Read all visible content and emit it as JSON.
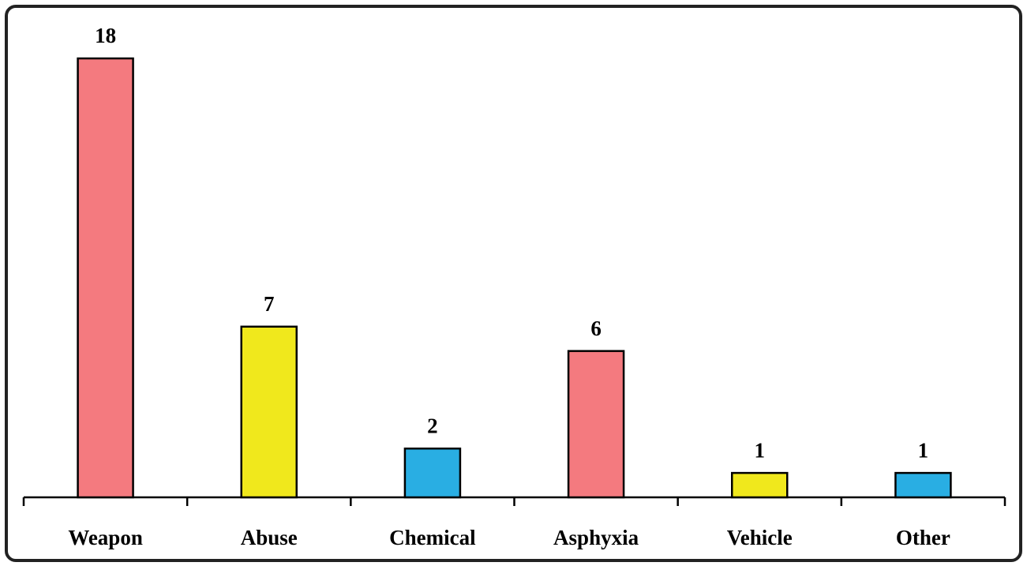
{
  "chart_data": {
    "type": "bar",
    "categories": [
      "Weapon",
      "Abuse",
      "Chemical",
      "Asphyxia",
      "Vehicle",
      "Other"
    ],
    "values": [
      18,
      7,
      2,
      6,
      1,
      1
    ],
    "colors": [
      "#f47a7f",
      "#f0e81c",
      "#29aee3",
      "#f47a7f",
      "#f0e81c",
      "#29aee3"
    ]
  }
}
